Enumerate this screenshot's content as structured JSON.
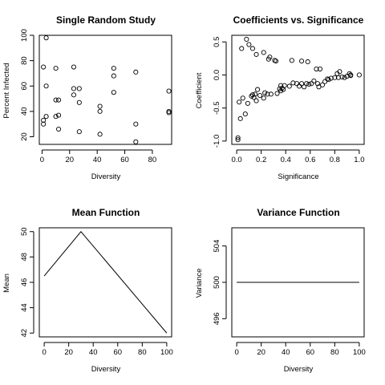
{
  "chart_data": [
    {
      "type": "scatter",
      "title": "Single Random Study",
      "xlabel": "Diversity",
      "ylabel": "Percent Infected",
      "xlim": [
        -2,
        94
      ],
      "ylim": [
        14,
        100
      ],
      "xticks": [
        0,
        20,
        40,
        60,
        80
      ],
      "yticks": [
        20,
        40,
        60,
        80,
        100
      ],
      "points": [
        {
          "x": 1,
          "y": 33
        },
        {
          "x": 1,
          "y": 30
        },
        {
          "x": 1,
          "y": 75
        },
        {
          "x": 3,
          "y": 98
        },
        {
          "x": 3,
          "y": 60
        },
        {
          "x": 3,
          "y": 36
        },
        {
          "x": 10,
          "y": 74
        },
        {
          "x": 10,
          "y": 49
        },
        {
          "x": 10,
          "y": 36
        },
        {
          "x": 12,
          "y": 49
        },
        {
          "x": 12,
          "y": 37
        },
        {
          "x": 12,
          "y": 26
        },
        {
          "x": 23,
          "y": 75
        },
        {
          "x": 23,
          "y": 58
        },
        {
          "x": 23,
          "y": 53
        },
        {
          "x": 27,
          "y": 58
        },
        {
          "x": 27,
          "y": 47
        },
        {
          "x": 27,
          "y": 24
        },
        {
          "x": 42,
          "y": 44
        },
        {
          "x": 42,
          "y": 40
        },
        {
          "x": 42,
          "y": 22
        },
        {
          "x": 52,
          "y": 74
        },
        {
          "x": 52,
          "y": 68
        },
        {
          "x": 52,
          "y": 55
        },
        {
          "x": 68,
          "y": 71
        },
        {
          "x": 68,
          "y": 30
        },
        {
          "x": 68,
          "y": 16
        },
        {
          "x": 92,
          "y": 56
        },
        {
          "x": 92,
          "y": 40
        },
        {
          "x": 92,
          "y": 39
        }
      ]
    },
    {
      "type": "scatter",
      "title": "Coefficients vs. Significance",
      "xlabel": "Significance",
      "ylabel": "Coefficient",
      "xlim": [
        -0.04,
        1.04
      ],
      "ylim": [
        -1.05,
        0.6
      ],
      "xticks": [
        0.0,
        0.2,
        0.4,
        0.6,
        0.8,
        1.0
      ],
      "ytick_labels": [
        "-1.0",
        "-0.5",
        "0.0",
        "0.5"
      ],
      "yticks": [
        -1.0,
        -0.5,
        0.0,
        0.5
      ],
      "points": [
        {
          "x": 0.01,
          "y": -0.95
        },
        {
          "x": 0.01,
          "y": -0.98
        },
        {
          "x": 0.02,
          "y": -0.41
        },
        {
          "x": 0.03,
          "y": -0.66
        },
        {
          "x": 0.04,
          "y": 0.4
        },
        {
          "x": 0.05,
          "y": -0.35
        },
        {
          "x": 0.07,
          "y": -0.59
        },
        {
          "x": 0.08,
          "y": 0.54
        },
        {
          "x": 0.09,
          "y": -0.43
        },
        {
          "x": 0.1,
          "y": 0.46
        },
        {
          "x": 0.12,
          "y": -0.32
        },
        {
          "x": 0.13,
          "y": 0.4
        },
        {
          "x": 0.13,
          "y": -0.3
        },
        {
          "x": 0.14,
          "y": -0.34
        },
        {
          "x": 0.15,
          "y": -0.29
        },
        {
          "x": 0.16,
          "y": 0.31
        },
        {
          "x": 0.16,
          "y": -0.39
        },
        {
          "x": 0.17,
          "y": -0.22
        },
        {
          "x": 0.19,
          "y": -0.31
        },
        {
          "x": 0.22,
          "y": 0.34
        },
        {
          "x": 0.22,
          "y": -0.35
        },
        {
          "x": 0.23,
          "y": -0.27
        },
        {
          "x": 0.25,
          "y": -0.29
        },
        {
          "x": 0.26,
          "y": 0.24
        },
        {
          "x": 0.27,
          "y": 0.27
        },
        {
          "x": 0.28,
          "y": -0.29
        },
        {
          "x": 0.31,
          "y": 0.22
        },
        {
          "x": 0.32,
          "y": 0.21
        },
        {
          "x": 0.33,
          "y": -0.28
        },
        {
          "x": 0.35,
          "y": -0.21
        },
        {
          "x": 0.36,
          "y": -0.16
        },
        {
          "x": 0.36,
          "y": -0.24
        },
        {
          "x": 0.37,
          "y": -0.2
        },
        {
          "x": 0.38,
          "y": -0.22
        },
        {
          "x": 0.39,
          "y": -0.16
        },
        {
          "x": 0.43,
          "y": -0.17
        },
        {
          "x": 0.45,
          "y": 0.22
        },
        {
          "x": 0.46,
          "y": -0.12
        },
        {
          "x": 0.49,
          "y": -0.13
        },
        {
          "x": 0.51,
          "y": -0.17
        },
        {
          "x": 0.53,
          "y": 0.21
        },
        {
          "x": 0.53,
          "y": -0.13
        },
        {
          "x": 0.55,
          "y": -0.18
        },
        {
          "x": 0.57,
          "y": -0.13
        },
        {
          "x": 0.58,
          "y": 0.2
        },
        {
          "x": 0.59,
          "y": -0.14
        },
        {
          "x": 0.61,
          "y": -0.13
        },
        {
          "x": 0.63,
          "y": -0.09
        },
        {
          "x": 0.65,
          "y": 0.09
        },
        {
          "x": 0.66,
          "y": -0.13
        },
        {
          "x": 0.67,
          "y": -0.18
        },
        {
          "x": 0.68,
          "y": 0.09
        },
        {
          "x": 0.7,
          "y": -0.15
        },
        {
          "x": 0.72,
          "y": -0.1
        },
        {
          "x": 0.74,
          "y": -0.06
        },
        {
          "x": 0.75,
          "y": -0.07
        },
        {
          "x": 0.77,
          "y": -0.05
        },
        {
          "x": 0.8,
          "y": -0.04
        },
        {
          "x": 0.82,
          "y": 0.02
        },
        {
          "x": 0.83,
          "y": -0.04
        },
        {
          "x": 0.84,
          "y": 0.05
        },
        {
          "x": 0.86,
          "y": -0.03
        },
        {
          "x": 0.88,
          "y": -0.04
        },
        {
          "x": 0.9,
          "y": -0.02
        },
        {
          "x": 0.92,
          "y": 0.02
        },
        {
          "x": 0.93,
          "y": 0.0
        },
        {
          "x": 0.93,
          "y": -0.01
        },
        {
          "x": 1.0,
          "y": 0.0
        }
      ]
    },
    {
      "type": "line",
      "title": "Mean Function",
      "xlabel": "Diversity",
      "ylabel": "Mean",
      "xlim": [
        -4,
        104
      ],
      "ylim": [
        41.7,
        50.3
      ],
      "xticks": [
        0,
        20,
        40,
        60,
        80,
        100
      ],
      "yticks": [
        42,
        44,
        46,
        48,
        50
      ],
      "x": [
        0,
        30,
        100
      ],
      "y": [
        46.5,
        50,
        42
      ]
    },
    {
      "type": "line",
      "title": "Variance Function",
      "xlabel": "Diversity",
      "ylabel": "Variance",
      "xlim": [
        -4,
        104
      ],
      "ylim": [
        494,
        506
      ],
      "xticks": [
        0,
        20,
        40,
        60,
        80,
        100
      ],
      "yticks": [
        496,
        500,
        504
      ],
      "x": [
        0,
        100
      ],
      "y": [
        500,
        500
      ]
    }
  ]
}
